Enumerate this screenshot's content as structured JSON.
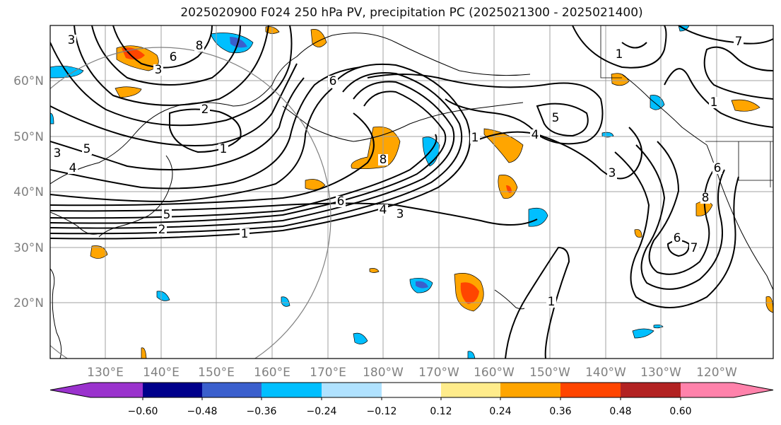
{
  "title": "2025020900 F024 250 hPa PV, precipitation PC (2025021300 - 2025021400)",
  "map": {
    "lat_ticks": [
      "60°N",
      "50°N",
      "40°N",
      "30°N",
      "20°N"
    ],
    "lon_ticks": [
      "130°E",
      "140°E",
      "150°E",
      "160°E",
      "170°E",
      "180°W",
      "170°W",
      "160°W",
      "150°W",
      "140°W",
      "130°W",
      "120°W"
    ],
    "contour_labels": [
      "3",
      "8",
      "6",
      "3",
      "2",
      "1",
      "5",
      "4",
      "3",
      "1",
      "8",
      "6",
      "4",
      "3",
      "6",
      "1",
      "2",
      "5",
      "4",
      "3",
      "1",
      "1",
      "6",
      "8",
      "5",
      "7",
      "6",
      "7",
      "1"
    ],
    "colors": {
      "contour": "#000000",
      "grid": "#a0a0a0",
      "coast": "#000000",
      "circle": "#808080"
    }
  },
  "colorbar": {
    "labels": [
      "−0.60",
      "−0.48",
      "−0.36",
      "−0.24",
      "−0.12",
      "0.12",
      "0.24",
      "0.36",
      "0.48",
      "0.60"
    ],
    "colors": [
      "#9a32cd",
      "#00008b",
      "#3a5fcd",
      "#00bfff",
      "#b0e2ff",
      "#ffffff",
      "#ffec8b",
      "#ffa500",
      "#ff4500",
      "#b22222",
      "#ff82ab"
    ]
  }
}
